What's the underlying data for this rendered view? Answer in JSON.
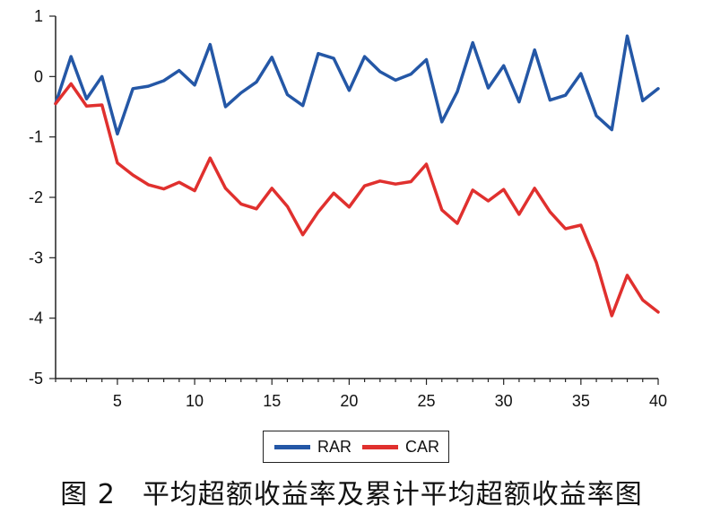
{
  "caption": {
    "figure_number": "图 2",
    "text": "平均超额收益率及累计平均超额收益率图"
  },
  "chart_data": {
    "type": "line",
    "x": [
      1,
      2,
      3,
      4,
      5,
      6,
      7,
      8,
      9,
      10,
      11,
      12,
      13,
      14,
      15,
      16,
      17,
      18,
      19,
      20,
      21,
      22,
      23,
      24,
      25,
      26,
      27,
      28,
      29,
      30,
      31,
      32,
      33,
      34,
      35,
      36,
      37,
      38,
      39,
      40
    ],
    "xlim": [
      1,
      40
    ],
    "xticks": [
      5,
      10,
      15,
      20,
      25,
      30,
      35,
      40
    ],
    "ylim": [
      -5,
      1
    ],
    "yticks": [
      1,
      0,
      -1,
      -2,
      -3,
      -4,
      -5
    ],
    "grid": false,
    "legend": "bottom",
    "series": [
      {
        "name": "RAR",
        "color": "#2457a6",
        "values": [
          -0.45,
          0.33,
          -0.37,
          0.0,
          -0.95,
          -0.2,
          -0.16,
          -0.07,
          0.1,
          -0.14,
          0.53,
          -0.5,
          -0.27,
          -0.09,
          0.32,
          -0.3,
          -0.48,
          0.38,
          0.3,
          -0.23,
          0.33,
          0.08,
          -0.06,
          0.04,
          0.28,
          -0.75,
          -0.25,
          0.56,
          -0.19,
          0.18,
          -0.42,
          0.44,
          -0.39,
          -0.31,
          0.05,
          -0.65,
          -0.88,
          0.67,
          -0.4,
          -0.2
        ]
      },
      {
        "name": "CAR",
        "color": "#e0302e",
        "values": [
          -0.45,
          -0.12,
          -0.49,
          -0.47,
          -1.43,
          -1.63,
          -1.79,
          -1.86,
          -1.75,
          -1.89,
          -1.35,
          -1.85,
          -2.11,
          -2.19,
          -1.85,
          -2.15,
          -2.62,
          -2.24,
          -1.93,
          -2.16,
          -1.81,
          -1.73,
          -1.78,
          -1.74,
          -1.45,
          -2.21,
          -2.43,
          -1.88,
          -2.06,
          -1.87,
          -2.28,
          -1.85,
          -2.24,
          -2.52,
          -2.46,
          -3.08,
          -3.96,
          -3.29,
          -3.7,
          -3.9
        ]
      }
    ]
  }
}
